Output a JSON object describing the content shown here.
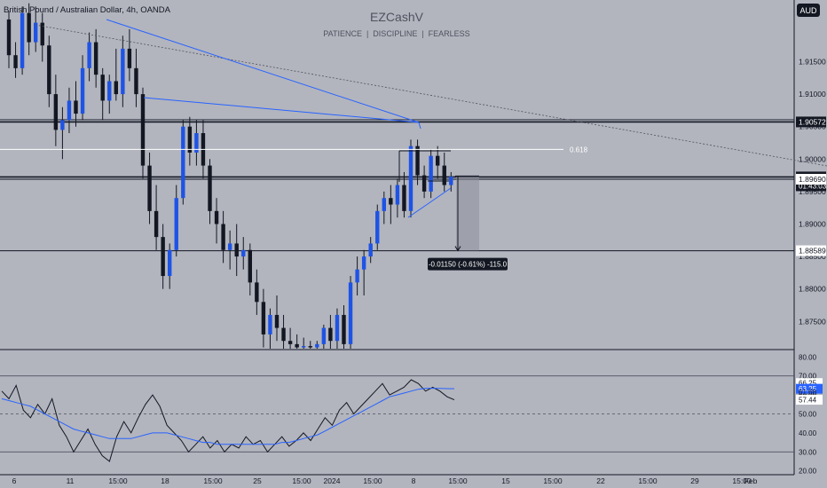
{
  "header": {
    "symbol": "British Pound / Australian Dollar, 4h, OANDA",
    "watermark_title": "EZCashV",
    "watermark_subtitle": "PATIENCE  |  DISCIPLINE  |  FEARLESS",
    "currency_button": "AUD"
  },
  "colors": {
    "background": "#b2b5be",
    "candle": "#1e53e5",
    "wick": "#131722",
    "trendline": "#2962ff",
    "rsi_line": "#131722",
    "rsi_ma": "#2962ff",
    "level_line": "#131722",
    "tag_dark": "#131722",
    "tag_light": "#ffffff",
    "tag_blue": "#2962ff"
  },
  "chart_data": {
    "type": "candlestick",
    "price_axis": {
      "range": [
        1.8708,
        1.9245
      ],
      "ticks": [
        "1.91500",
        "1.91000",
        "1.90500",
        "1.90000",
        "1.89500",
        "1.89000",
        "1.88500",
        "1.88000",
        "1.87500"
      ]
    },
    "time_axis": {
      "ticks": [
        "6",
        "11",
        "15:00",
        "18",
        "15:00",
        "25",
        "15:00",
        "2024",
        "15:00",
        "8",
        "15:00",
        "15",
        "15:00",
        "22",
        "15:00",
        "29",
        "15:00",
        "Feb"
      ]
    },
    "levels": [
      {
        "price": 1.90572,
        "label": "1.90572",
        "style": "dark"
      },
      {
        "price": 1.89725,
        "label": "1.89725",
        "sublabel": "01:43:03",
        "style": "dark"
      },
      {
        "price": 1.8969,
        "label": "1.89690",
        "style": "light"
      },
      {
        "price": 1.88589,
        "label": "1.88589",
        "style": "light"
      }
    ],
    "fib_level": {
      "label": "0.618",
      "price": 1.9015
    },
    "measure": {
      "label": "-0.01150 (-0.61%) -115.0",
      "from": 1.89739,
      "to": 1.88589
    },
    "candles": [
      [
        1.9215,
        1.9228,
        1.914,
        1.916
      ],
      [
        1.916,
        1.918,
        1.9125,
        1.914
      ],
      [
        1.914,
        1.9235,
        1.913,
        1.9225
      ],
      [
        1.9225,
        1.924,
        1.916,
        1.918
      ],
      [
        1.918,
        1.9235,
        1.9165,
        1.921
      ],
      [
        1.921,
        1.9225,
        1.915,
        1.9175
      ],
      [
        1.9175,
        1.919,
        1.908,
        1.91
      ],
      [
        1.91,
        1.913,
        1.902,
        1.9045
      ],
      [
        1.9045,
        1.908,
        1.9,
        1.906
      ],
      [
        1.906,
        1.911,
        1.904,
        1.909
      ],
      [
        1.909,
        1.912,
        1.905,
        1.907
      ],
      [
        1.907,
        1.916,
        1.906,
        1.914
      ],
      [
        1.914,
        1.9195,
        1.912,
        1.918
      ],
      [
        1.918,
        1.92,
        1.911,
        1.913
      ],
      [
        1.913,
        1.914,
        1.906,
        1.909
      ],
      [
        1.909,
        1.913,
        1.907,
        1.912
      ],
      [
        1.912,
        1.917,
        1.909,
        1.91
      ],
      [
        1.91,
        1.919,
        1.908,
        1.917
      ],
      [
        1.917,
        1.92,
        1.912,
        1.914
      ],
      [
        1.914,
        1.917,
        1.908,
        1.91
      ],
      [
        1.91,
        1.911,
        1.897,
        1.899
      ],
      [
        1.899,
        1.901,
        1.89,
        1.892
      ],
      [
        1.892,
        1.896,
        1.886,
        1.888
      ],
      [
        1.888,
        1.89,
        1.88,
        1.882
      ],
      [
        1.882,
        1.887,
        1.88,
        1.886
      ],
      [
        1.886,
        1.896,
        1.885,
        1.894
      ],
      [
        1.894,
        1.906,
        1.893,
        1.905
      ],
      [
        1.905,
        1.9065,
        1.899,
        1.901
      ],
      [
        1.901,
        1.906,
        1.899,
        1.904
      ],
      [
        1.904,
        1.906,
        1.897,
        1.899
      ],
      [
        1.899,
        1.9,
        1.89,
        1.892
      ],
      [
        1.892,
        1.894,
        1.887,
        1.89
      ],
      [
        1.89,
        1.892,
        1.884,
        1.886
      ],
      [
        1.886,
        1.889,
        1.883,
        1.887
      ],
      [
        1.887,
        1.89,
        1.882,
        1.885
      ],
      [
        1.885,
        1.888,
        1.883,
        1.886
      ],
      [
        1.886,
        1.887,
        1.879,
        1.881
      ],
      [
        1.881,
        1.883,
        1.876,
        1.878
      ],
      [
        1.878,
        1.88,
        1.871,
        1.873
      ],
      [
        1.873,
        1.877,
        1.8708,
        1.876
      ],
      [
        1.876,
        1.879,
        1.872,
        1.874
      ],
      [
        1.874,
        1.876,
        1.8708,
        1.872
      ],
      [
        1.872,
        1.874,
        1.8708,
        1.8715
      ],
      [
        1.8715,
        1.873,
        1.8708,
        1.871
      ],
      [
        1.871,
        1.8725,
        1.8708,
        1.8712
      ],
      [
        1.8712,
        1.872,
        1.8708,
        1.871
      ],
      [
        1.871,
        1.872,
        1.8708,
        1.8715
      ],
      [
        1.8715,
        1.8745,
        1.8708,
        1.874
      ],
      [
        1.874,
        1.876,
        1.8708,
        1.872
      ],
      [
        1.872,
        1.877,
        1.8708,
        1.876
      ],
      [
        1.876,
        1.8775,
        1.8708,
        1.8715
      ],
      [
        1.8715,
        1.882,
        1.8708,
        1.881
      ],
      [
        1.881,
        1.885,
        1.879,
        1.883
      ],
      [
        1.883,
        1.886,
        1.879,
        1.885
      ],
      [
        1.885,
        1.888,
        1.884,
        1.887
      ],
      [
        1.887,
        1.893,
        1.886,
        1.892
      ],
      [
        1.892,
        1.895,
        1.89,
        1.894
      ],
      [
        1.894,
        1.896,
        1.89,
        1.893
      ],
      [
        1.893,
        1.897,
        1.891,
        1.896
      ],
      [
        1.896,
        1.898,
        1.891,
        1.892
      ],
      [
        1.892,
        1.903,
        1.891,
        1.902
      ],
      [
        1.902,
        1.903,
        1.896,
        1.8975
      ],
      [
        1.8975,
        1.899,
        1.894,
        1.895
      ],
      [
        1.895,
        1.9015,
        1.894,
        1.9005
      ],
      [
        1.9005,
        1.902,
        1.897,
        1.899
      ],
      [
        1.899,
        1.901,
        1.895,
        1.896
      ],
      [
        1.896,
        1.898,
        1.895,
        1.8973
      ]
    ],
    "rsi": {
      "axis_ticks": [
        "80.00",
        "70.00",
        "60.00",
        "50.00",
        "40.00",
        "30.00",
        "20.00"
      ],
      "range": [
        18,
        82
      ],
      "bands": [
        70,
        50,
        30
      ],
      "labels": [
        {
          "value": 66.25,
          "label": "66.25",
          "style": "light"
        },
        {
          "value": 63.25,
          "label": "63.25",
          "style": "blue"
        },
        {
          "value": 61.68,
          "label": "61.68",
          "style": "plain"
        },
        {
          "value": 57.44,
          "label": "57.44",
          "style": "light"
        }
      ],
      "values": [
        62,
        58,
        65,
        52,
        48,
        55,
        50,
        58,
        44,
        38,
        30,
        36,
        42,
        34,
        28,
        25,
        38,
        46,
        40,
        48,
        55,
        60,
        54,
        44,
        40,
        36,
        30,
        34,
        38,
        32,
        36,
        30,
        34,
        32,
        38,
        34,
        36,
        30,
        34,
        38,
        33,
        36,
        40,
        36,
        42,
        48,
        44,
        52,
        56,
        50,
        54,
        58,
        62,
        66,
        60,
        62,
        64,
        68,
        66,
        62,
        64,
        62,
        59,
        57.44
      ],
      "ma": [
        58,
        57,
        56,
        55,
        54,
        52,
        50,
        48,
        46,
        44,
        42,
        41,
        40,
        39,
        38,
        37,
        37,
        37,
        37,
        38,
        39,
        40,
        40,
        40,
        39,
        38,
        37,
        36,
        35,
        35,
        34,
        34,
        34,
        34,
        34,
        34,
        34,
        34,
        34,
        35,
        35,
        36,
        37,
        38,
        39,
        41,
        43,
        45,
        47,
        49,
        51,
        53,
        55,
        57,
        59,
        60,
        61,
        62,
        63,
        63.5,
        63.5,
        63.4,
        63.3,
        63.25
      ]
    }
  }
}
